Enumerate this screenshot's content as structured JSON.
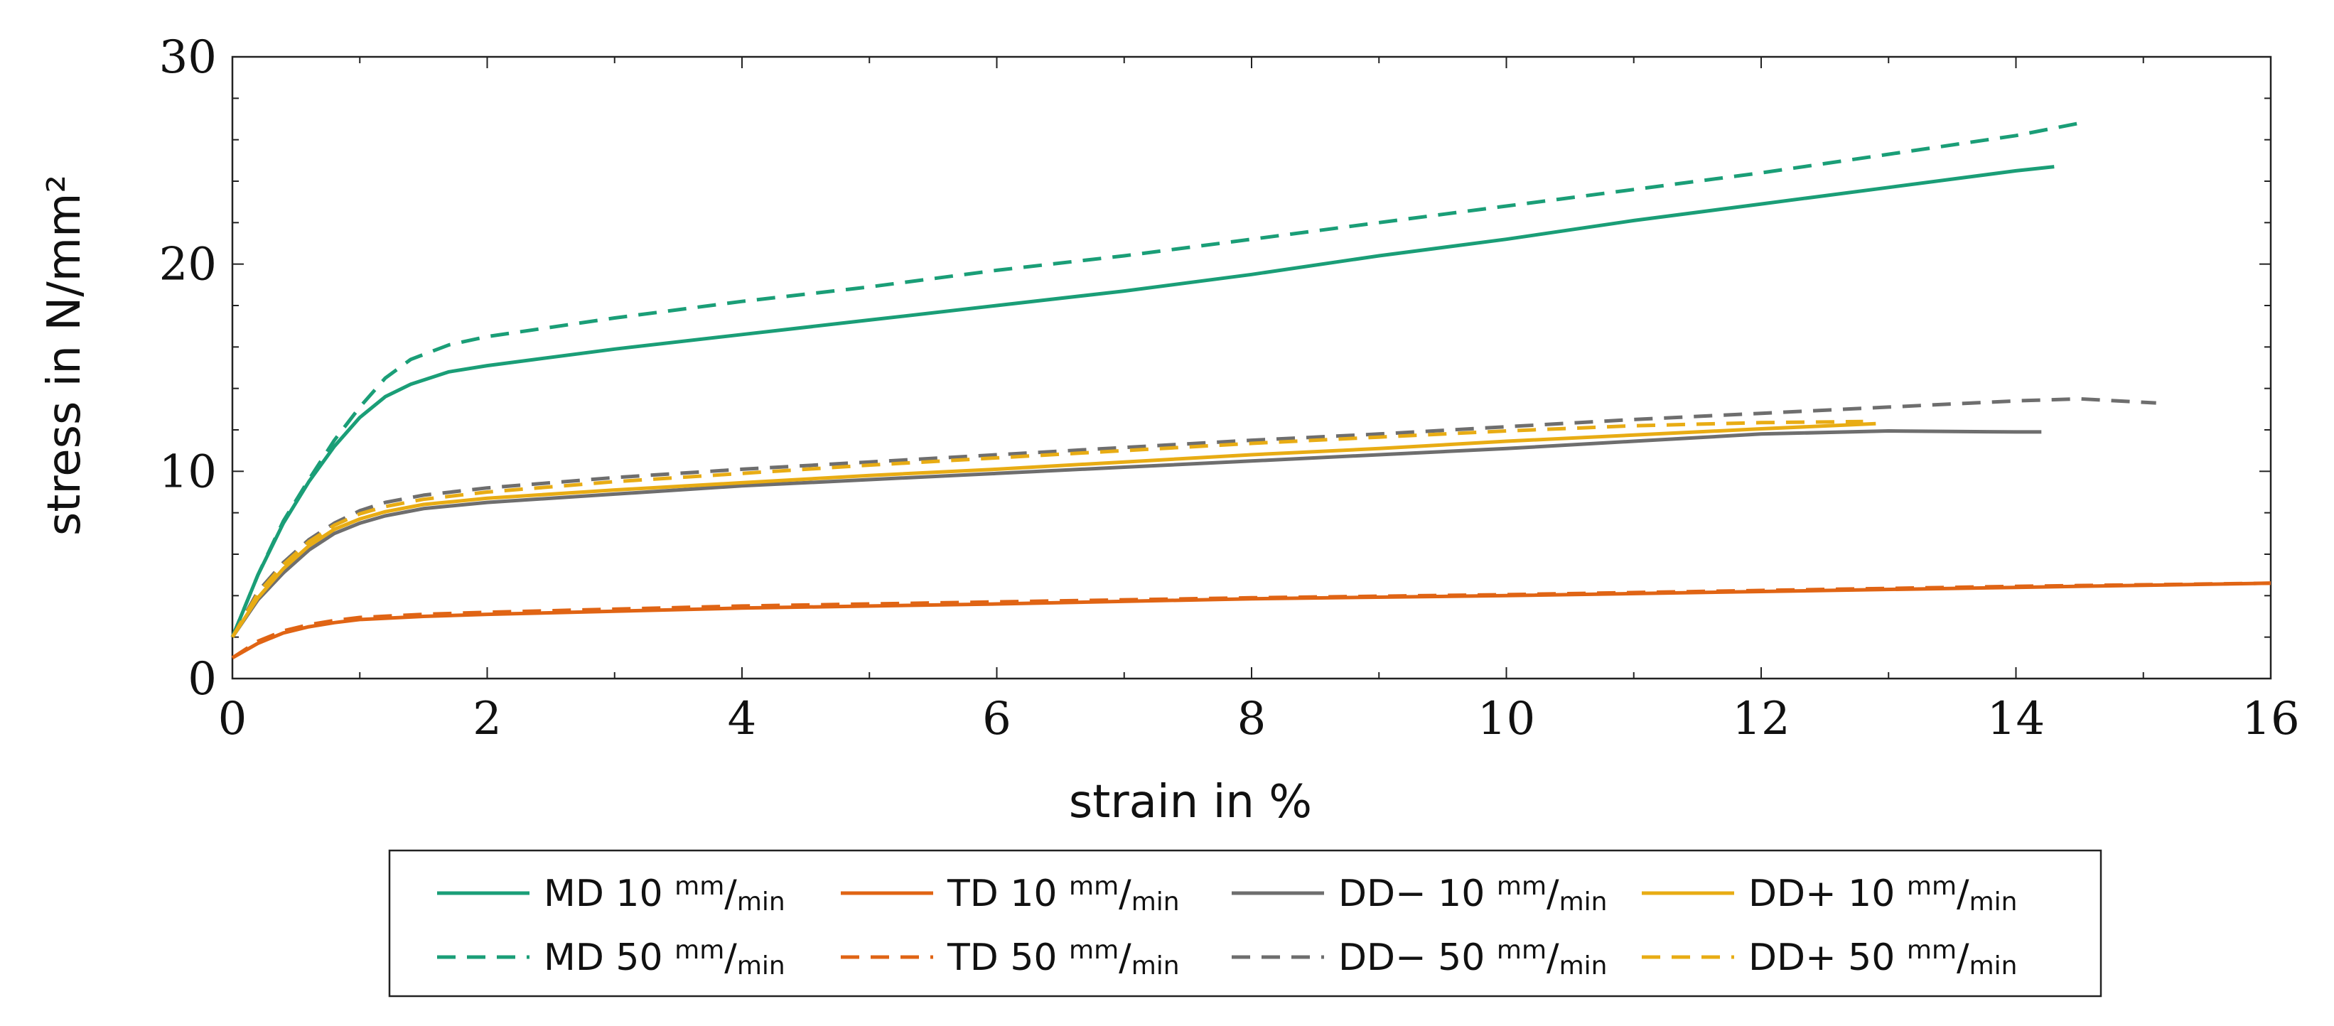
{
  "chart_data": {
    "type": "line",
    "title": "",
    "xlabel": "strain in %",
    "ylabel": "stress in N/mm²",
    "xlim": [
      0,
      16
    ],
    "ylim": [
      0,
      30
    ],
    "xticks": [
      0,
      2,
      4,
      6,
      8,
      10,
      12,
      14,
      16
    ],
    "yticks": [
      0,
      10,
      20,
      30
    ],
    "grid": false,
    "legend_position": "bottom",
    "colors": {
      "MD": "#1a9e77",
      "TD": "#e06414",
      "DD-": "#6e6e6e",
      "DD+": "#e8ac14"
    },
    "series": [
      {
        "name": "MD 10 mm/min",
        "prefix": "MD",
        "rate": "10",
        "unit_num": "mm",
        "unit_den": "min",
        "color": "#1a9e77",
        "dash": "solid",
        "x": [
          0,
          0.2,
          0.4,
          0.6,
          0.8,
          1.0,
          1.2,
          1.4,
          1.7,
          2.0,
          3,
          4,
          5,
          6,
          7,
          8,
          9,
          10,
          11,
          12,
          13,
          14,
          14.3
        ],
        "y": [
          2.0,
          5.0,
          7.5,
          9.5,
          11.2,
          12.6,
          13.6,
          14.2,
          14.8,
          15.1,
          15.9,
          16.6,
          17.3,
          18.0,
          18.7,
          19.5,
          20.4,
          21.2,
          22.1,
          22.9,
          23.7,
          24.5,
          24.7
        ]
      },
      {
        "name": "MD 50 mm/min",
        "prefix": "MD",
        "rate": "50",
        "unit_num": "mm",
        "unit_den": "min",
        "color": "#1a9e77",
        "dash": "dashed",
        "x": [
          0,
          0.2,
          0.4,
          0.6,
          0.8,
          1.0,
          1.2,
          1.4,
          1.7,
          2.0,
          3,
          4,
          5,
          6,
          7,
          8,
          9,
          10,
          11,
          12,
          13,
          14,
          14.5
        ],
        "y": [
          2.0,
          5.0,
          7.6,
          9.6,
          11.5,
          13.1,
          14.5,
          15.4,
          16.1,
          16.5,
          17.4,
          18.2,
          18.9,
          19.7,
          20.4,
          21.2,
          22.0,
          22.8,
          23.6,
          24.4,
          25.3,
          26.2,
          26.8
        ]
      },
      {
        "name": "TD 10 mm/min",
        "prefix": "TD",
        "rate": "10",
        "unit_num": "mm",
        "unit_den": "min",
        "color": "#e06414",
        "dash": "solid",
        "x": [
          0,
          0.2,
          0.4,
          0.6,
          0.8,
          1.0,
          1.5,
          2,
          4,
          6,
          8,
          10,
          12,
          14,
          16
        ],
        "y": [
          1.0,
          1.7,
          2.2,
          2.5,
          2.7,
          2.85,
          3.0,
          3.1,
          3.4,
          3.6,
          3.85,
          4.0,
          4.2,
          4.4,
          4.6
        ]
      },
      {
        "name": "TD 50 mm/min",
        "prefix": "TD",
        "rate": "50",
        "unit_num": "mm",
        "unit_den": "min",
        "color": "#e06414",
        "dash": "dashed",
        "x": [
          0,
          0.2,
          0.4,
          0.6,
          0.8,
          1.0,
          1.5,
          2,
          4,
          6,
          8,
          10,
          12,
          14,
          16
        ],
        "y": [
          1.0,
          1.8,
          2.3,
          2.6,
          2.8,
          2.95,
          3.1,
          3.2,
          3.5,
          3.7,
          3.9,
          4.05,
          4.25,
          4.45,
          4.6
        ]
      },
      {
        "name": "DD− 10 mm/min",
        "prefix": "DD−",
        "rate": "10",
        "unit_num": "mm",
        "unit_den": "min",
        "color": "#6e6e6e",
        "dash": "solid",
        "x": [
          0,
          0.2,
          0.4,
          0.6,
          0.8,
          1.0,
          1.2,
          1.5,
          2,
          3,
          4,
          5,
          6,
          7,
          8,
          9,
          10,
          11,
          12,
          13,
          14,
          14.2
        ],
        "y": [
          2.0,
          3.8,
          5.1,
          6.2,
          7.0,
          7.5,
          7.85,
          8.2,
          8.5,
          8.9,
          9.3,
          9.6,
          9.9,
          10.2,
          10.5,
          10.8,
          11.1,
          11.45,
          11.8,
          11.95,
          11.9,
          11.9
        ]
      },
      {
        "name": "DD− 50 mm/min",
        "prefix": "DD−",
        "rate": "50",
        "unit_num": "mm",
        "unit_den": "min",
        "color": "#6e6e6e",
        "dash": "dashed",
        "x": [
          0,
          0.2,
          0.4,
          0.6,
          0.8,
          1.0,
          1.2,
          1.5,
          2,
          3,
          4,
          5,
          6,
          7,
          8,
          9,
          10,
          11,
          12,
          13,
          14,
          14.5,
          15.1
        ],
        "y": [
          2.0,
          4.2,
          5.6,
          6.7,
          7.5,
          8.1,
          8.5,
          8.85,
          9.2,
          9.7,
          10.1,
          10.45,
          10.8,
          11.15,
          11.5,
          11.8,
          12.15,
          12.5,
          12.8,
          13.1,
          13.4,
          13.5,
          13.3
        ]
      },
      {
        "name": "DD+ 10 mm/min",
        "prefix": "DD+",
        "rate": "10",
        "unit_num": "mm",
        "unit_den": "min",
        "color": "#e8ac14",
        "dash": "solid",
        "x": [
          0,
          0.2,
          0.4,
          0.6,
          0.8,
          1.0,
          1.2,
          1.5,
          2,
          3,
          4,
          5,
          6,
          7,
          8,
          9,
          10,
          11,
          12,
          12.9
        ],
        "y": [
          2.0,
          3.9,
          5.3,
          6.4,
          7.2,
          7.7,
          8.05,
          8.4,
          8.7,
          9.1,
          9.45,
          9.8,
          10.1,
          10.45,
          10.8,
          11.1,
          11.45,
          11.75,
          12.05,
          12.3
        ]
      },
      {
        "name": "DD+ 50 mm/min",
        "prefix": "DD+",
        "rate": "50",
        "unit_num": "mm",
        "unit_den": "min",
        "color": "#e8ac14",
        "dash": "dashed",
        "x": [
          0,
          0.2,
          0.4,
          0.6,
          0.8,
          1.0,
          1.2,
          1.5,
          2,
          3,
          4,
          5,
          6,
          7,
          8,
          9,
          10,
          11,
          12,
          12.8
        ],
        "y": [
          2.0,
          4.1,
          5.5,
          6.6,
          7.4,
          7.95,
          8.3,
          8.65,
          9.0,
          9.5,
          9.9,
          10.3,
          10.65,
          11.0,
          11.35,
          11.65,
          11.95,
          12.2,
          12.35,
          12.4
        ]
      }
    ]
  }
}
